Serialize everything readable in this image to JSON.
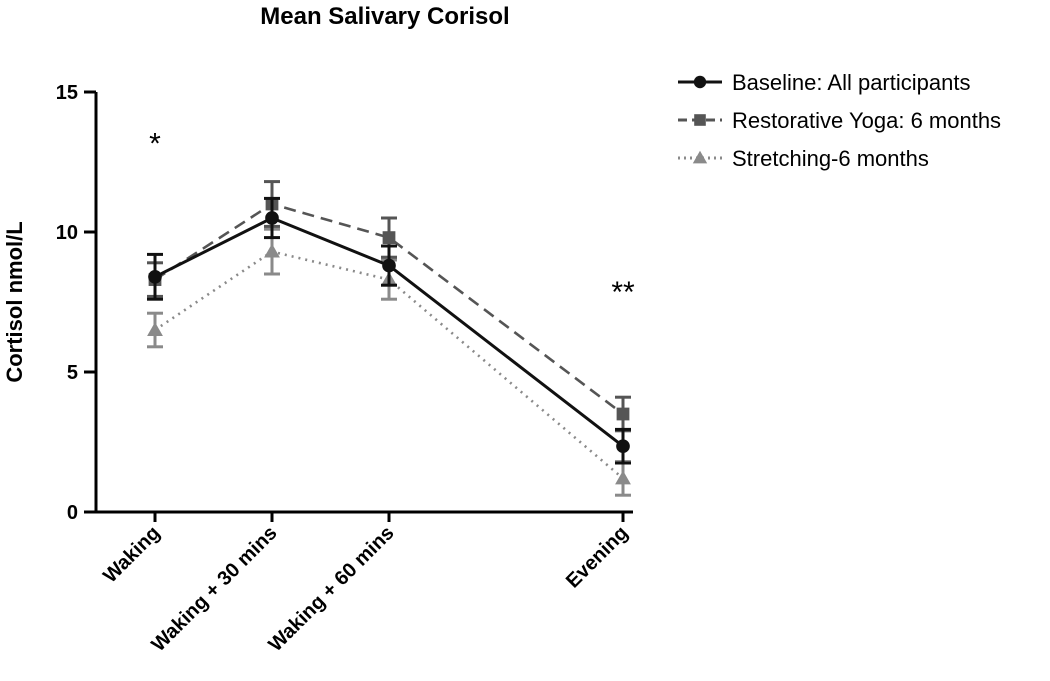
{
  "chart_data": {
    "type": "line",
    "title": "Mean Salivary Corisol",
    "xlabel": "",
    "ylabel": "Cortisol nmol/L",
    "ylim": [
      0,
      15
    ],
    "yticks": [
      "0",
      "5",
      "10",
      "15"
    ],
    "categories": [
      "Waking",
      "Waking + 30 mins",
      "Waking + 60 mins",
      "Evening"
    ],
    "category_positions": [
      0,
      1,
      2,
      4
    ],
    "series": [
      {
        "name": "Baseline: All participants",
        "values": [
          8.4,
          10.5,
          8.8,
          2.35
        ],
        "errors": [
          0.8,
          0.7,
          0.7,
          0.6
        ],
        "color": "#111111",
        "marker": "circle",
        "dash": "solid"
      },
      {
        "name": "Restorative Yoga: 6 months",
        "values": [
          8.3,
          11.0,
          9.8,
          3.5
        ],
        "errors": [
          0.6,
          0.8,
          0.7,
          0.6
        ],
        "color": "#555555",
        "marker": "square",
        "dash": "dashed"
      },
      {
        "name": "Stretching-6 months",
        "values": [
          6.5,
          9.3,
          8.3,
          1.2
        ],
        "errors": [
          0.6,
          0.8,
          0.7,
          0.6
        ],
        "color": "#8a8a8a",
        "marker": "triangle",
        "dash": "dotted"
      }
    ],
    "annotations": [
      {
        "text": "*",
        "category": "Waking",
        "y": 13.3
      },
      {
        "text": "**",
        "category": "Evening",
        "y": 8.0
      }
    ],
    "legend_position": "top-right",
    "grid": false
  }
}
